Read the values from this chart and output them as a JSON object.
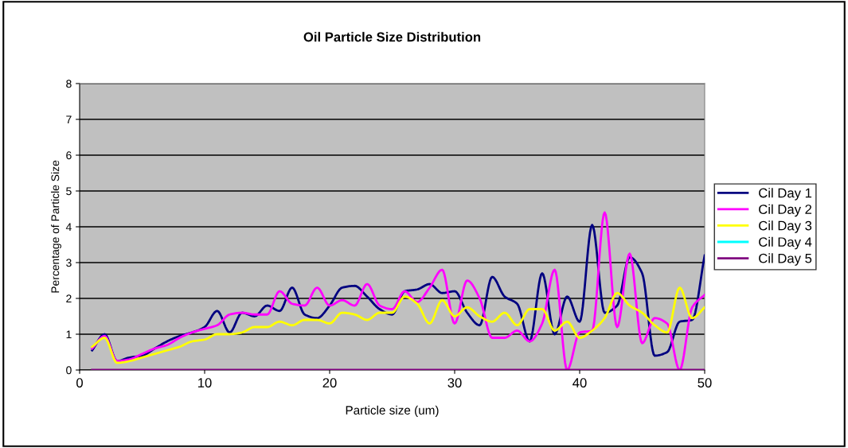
{
  "chart_data": {
    "type": "line",
    "title": "Oil Particle Size Distribution",
    "xlabel": "Particle size (um)",
    "ylabel": "Percentage of Particle Size",
    "x": [
      1,
      2,
      3,
      4,
      5,
      6,
      7,
      8,
      9,
      10,
      11,
      12,
      13,
      14,
      15,
      16,
      17,
      18,
      19,
      20,
      21,
      22,
      23,
      24,
      25,
      26,
      27,
      28,
      29,
      30,
      31,
      32,
      33,
      34,
      35,
      36,
      37,
      38,
      39,
      40,
      41,
      42,
      43,
      44,
      45,
      46,
      47,
      48,
      49,
      50
    ],
    "series": [
      {
        "name": "Cil Day 1",
        "color": "#000080",
        "values": [
          0.55,
          1.0,
          0.25,
          0.35,
          0.4,
          0.6,
          0.8,
          0.95,
          1.05,
          1.2,
          1.65,
          1.05,
          1.6,
          1.5,
          1.8,
          1.65,
          2.3,
          1.55,
          1.45,
          1.8,
          2.3,
          2.35,
          2.05,
          1.7,
          1.55,
          2.2,
          2.25,
          2.4,
          2.15,
          2.2,
          1.6,
          1.25,
          2.6,
          2.05,
          1.85,
          0.8,
          2.7,
          1.0,
          2.05,
          1.35,
          4.05,
          1.6,
          1.8,
          3.15,
          2.7,
          0.4,
          0.5,
          1.35,
          1.4,
          3.2
        ]
      },
      {
        "name": "Cil Day 2",
        "color": "#ff00ff",
        "values": [
          0.6,
          0.95,
          0.25,
          0.3,
          0.45,
          0.6,
          0.7,
          0.9,
          1.05,
          1.15,
          1.25,
          1.55,
          1.6,
          1.55,
          1.55,
          2.2,
          1.85,
          1.8,
          2.3,
          1.8,
          1.95,
          1.8,
          2.4,
          1.8,
          1.7,
          2.2,
          1.9,
          2.3,
          2.8,
          1.3,
          2.5,
          2.0,
          0.9,
          0.9,
          1.1,
          0.8,
          1.3,
          2.8,
          0.0,
          1.05,
          1.1,
          4.4,
          1.2,
          3.25,
          0.75,
          1.45,
          1.3,
          0.0,
          1.75,
          2.1
        ]
      },
      {
        "name": "Cil Day 3",
        "color": "#ffff00",
        "values": [
          0.65,
          0.9,
          0.2,
          0.25,
          0.35,
          0.45,
          0.55,
          0.65,
          0.8,
          0.85,
          1.0,
          1.0,
          1.05,
          1.2,
          1.2,
          1.35,
          1.25,
          1.4,
          1.4,
          1.3,
          1.6,
          1.55,
          1.4,
          1.6,
          1.6,
          2.05,
          1.85,
          1.3,
          1.95,
          1.5,
          1.75,
          1.5,
          1.35,
          1.6,
          1.25,
          1.7,
          1.7,
          1.1,
          1.35,
          0.9,
          1.1,
          1.45,
          2.15,
          1.8,
          1.6,
          1.25,
          1.05,
          2.3,
          1.45,
          1.75
        ]
      },
      {
        "name": "Cil Day 4",
        "color": "#00ffff",
        "values": [
          null,
          null,
          null,
          null,
          null,
          null,
          null,
          null,
          null,
          null,
          null,
          null,
          null,
          null,
          null,
          null,
          null,
          null,
          null,
          null,
          null,
          null,
          null,
          null,
          null,
          null,
          null,
          null,
          null,
          null,
          null,
          null,
          null,
          null,
          null,
          null,
          null,
          null,
          null,
          null,
          null,
          null,
          null,
          null,
          null,
          null,
          null,
          null,
          null,
          null
        ]
      },
      {
        "name": "Cil Day 5",
        "color": "#800080",
        "values": [
          0,
          0,
          0,
          0,
          0,
          0,
          0,
          0,
          0,
          0,
          0,
          0,
          0,
          0,
          0,
          0,
          0,
          0,
          0,
          0,
          0,
          0,
          0,
          0,
          0,
          0,
          0,
          0,
          0,
          0,
          0,
          0,
          0,
          0,
          0,
          0,
          0,
          0,
          0,
          0,
          0,
          0,
          0,
          0,
          0,
          0,
          0,
          0,
          0,
          0
        ]
      }
    ],
    "xlim": [
      0,
      50
    ],
    "xticks": [
      0,
      10,
      20,
      30,
      40,
      50
    ],
    "ylim": [
      0,
      8
    ],
    "yticks": [
      0,
      1,
      2,
      3,
      4,
      5,
      6,
      7,
      8
    ],
    "grid": "y",
    "legend": "right",
    "marker": "none",
    "line_style": "solid"
  }
}
